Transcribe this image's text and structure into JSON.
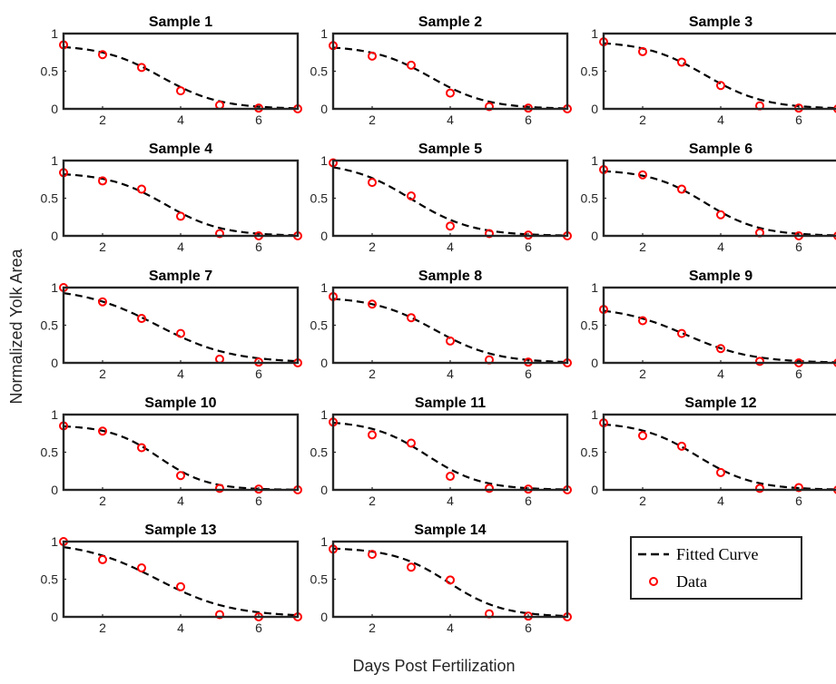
{
  "figure": {
    "xlabel": "Days Post Fertilization",
    "ylabel": "Normalized Yolk Area"
  },
  "legend": {
    "placement": "bottom-right",
    "entries": [
      {
        "label": "Fitted Curve",
        "style": "dashed-line",
        "color": "#000000"
      },
      {
        "label": "Data",
        "style": "circle-marker",
        "color": "#ff0000"
      }
    ]
  },
  "colors": {
    "data": "#ff0000",
    "fit": "#000000",
    "axes": "#262626"
  },
  "chart_data": [
    {
      "type": "line",
      "title": "Sample 1",
      "xlim": [
        1,
        7
      ],
      "ylim": [
        0,
        1
      ],
      "xticks": [
        2,
        4,
        6
      ],
      "yticks": [
        0,
        0.5,
        1
      ],
      "x": [
        1,
        2,
        3,
        4,
        5,
        6,
        7
      ],
      "data": [
        0.85,
        0.72,
        0.55,
        0.24,
        0.05,
        0.01,
        0.0
      ],
      "fit": {
        "a": 0.85,
        "t0": 3.5,
        "s": 0.75
      }
    },
    {
      "type": "line",
      "title": "Sample 2",
      "xlim": [
        1,
        7
      ],
      "ylim": [
        0,
        1
      ],
      "xticks": [
        2,
        4,
        6
      ],
      "yticks": [
        0,
        0.5,
        1
      ],
      "x": [
        1,
        2,
        3,
        4,
        5,
        6,
        7
      ],
      "data": [
        0.84,
        0.7,
        0.58,
        0.21,
        0.03,
        0.01,
        0.0
      ],
      "fit": {
        "a": 0.84,
        "t0": 3.5,
        "s": 0.73
      }
    },
    {
      "type": "line",
      "title": "Sample 3",
      "xlim": [
        1,
        7
      ],
      "ylim": [
        0,
        1
      ],
      "xticks": [
        2,
        4,
        6
      ],
      "yticks": [
        0,
        0.5,
        1
      ],
      "x": [
        1,
        2,
        3,
        4,
        5,
        6,
        7
      ],
      "data": [
        0.89,
        0.76,
        0.62,
        0.31,
        0.04,
        0.01,
        0.0
      ],
      "fit": {
        "a": 0.9,
        "t0": 3.6,
        "s": 0.76
      }
    },
    {
      "type": "line",
      "title": "Sample 4",
      "xlim": [
        1,
        7
      ],
      "ylim": [
        0,
        1
      ],
      "xticks": [
        2,
        4,
        6
      ],
      "yticks": [
        0,
        0.5,
        1
      ],
      "x": [
        1,
        2,
        3,
        4,
        5,
        6,
        7
      ],
      "data": [
        0.84,
        0.73,
        0.62,
        0.26,
        0.03,
        0.0,
        0.0
      ],
      "fit": {
        "a": 0.84,
        "t0": 3.6,
        "s": 0.72
      }
    },
    {
      "type": "line",
      "title": "Sample 5",
      "xlim": [
        1,
        7
      ],
      "ylim": [
        0,
        1
      ],
      "xticks": [
        2,
        4,
        6
      ],
      "yticks": [
        0,
        0.5,
        1
      ],
      "x": [
        1,
        2,
        3,
        4,
        5,
        6,
        7
      ],
      "data": [
        0.97,
        0.71,
        0.53,
        0.13,
        0.03,
        0.01,
        0.0
      ],
      "fit": {
        "a": 0.98,
        "t0": 3.0,
        "s": 0.78
      }
    },
    {
      "type": "line",
      "title": "Sample 6",
      "xlim": [
        1,
        7
      ],
      "ylim": [
        0,
        1
      ],
      "xticks": [
        2,
        4,
        6
      ],
      "yticks": [
        0,
        0.5,
        1
      ],
      "x": [
        1,
        2,
        3,
        4,
        5,
        6,
        7
      ],
      "data": [
        0.88,
        0.81,
        0.62,
        0.28,
        0.04,
        0.0,
        0.0
      ],
      "fit": {
        "a": 0.88,
        "t0": 3.6,
        "s": 0.7
      }
    },
    {
      "type": "line",
      "title": "Sample 7",
      "xlim": [
        1,
        7
      ],
      "ylim": [
        0,
        1
      ],
      "xticks": [
        2,
        4,
        6
      ],
      "yticks": [
        0,
        0.5,
        1
      ],
      "x": [
        1,
        2,
        3,
        4,
        5,
        6,
        7
      ],
      "data": [
        1.0,
        0.81,
        0.59,
        0.39,
        0.05,
        0.01,
        0.0
      ],
      "fit": {
        "a": 1.0,
        "t0": 3.4,
        "s": 0.95
      }
    },
    {
      "type": "line",
      "title": "Sample 8",
      "xlim": [
        1,
        7
      ],
      "ylim": [
        0,
        1
      ],
      "xticks": [
        2,
        4,
        6
      ],
      "yticks": [
        0,
        0.5,
        1
      ],
      "x": [
        1,
        2,
        3,
        4,
        5,
        6,
        7
      ],
      "data": [
        0.88,
        0.78,
        0.6,
        0.29,
        0.04,
        0.01,
        0.0
      ],
      "fit": {
        "a": 0.88,
        "t0": 3.6,
        "s": 0.78
      }
    },
    {
      "type": "line",
      "title": "Sample 9",
      "xlim": [
        1,
        7
      ],
      "ylim": [
        0,
        1
      ],
      "xticks": [
        2,
        4,
        6
      ],
      "yticks": [
        0,
        0.5,
        1
      ],
      "x": [
        1,
        2,
        3,
        4,
        5,
        6,
        7
      ],
      "data": [
        0.71,
        0.56,
        0.39,
        0.19,
        0.02,
        0.0,
        0.0
      ],
      "fit": {
        "a": 0.75,
        "t0": 3.1,
        "s": 0.85
      }
    },
    {
      "type": "line",
      "title": "Sample 10",
      "xlim": [
        1,
        7
      ],
      "ylim": [
        0,
        1
      ],
      "xticks": [
        2,
        4,
        6
      ],
      "yticks": [
        0,
        0.5,
        1
      ],
      "x": [
        1,
        2,
        3,
        4,
        5,
        6,
        7
      ],
      "data": [
        0.85,
        0.78,
        0.56,
        0.19,
        0.02,
        0.01,
        0.0
      ],
      "fit": {
        "a": 0.86,
        "t0": 3.45,
        "s": 0.62
      }
    },
    {
      "type": "line",
      "title": "Sample 11",
      "xlim": [
        1,
        7
      ],
      "ylim": [
        0,
        1
      ],
      "xticks": [
        2,
        4,
        6
      ],
      "yticks": [
        0,
        0.5,
        1
      ],
      "x": [
        1,
        2,
        3,
        4,
        5,
        6,
        7
      ],
      "data": [
        0.9,
        0.73,
        0.62,
        0.18,
        0.02,
        0.01,
        0.0
      ],
      "fit": {
        "a": 0.92,
        "t0": 3.4,
        "s": 0.7
      }
    },
    {
      "type": "line",
      "title": "Sample 12",
      "xlim": [
        1,
        7
      ],
      "ylim": [
        0,
        1
      ],
      "xticks": [
        2,
        4,
        6
      ],
      "yticks": [
        0,
        0.5,
        1
      ],
      "x": [
        1,
        2,
        3,
        4,
        5,
        6,
        7
      ],
      "data": [
        0.89,
        0.72,
        0.58,
        0.23,
        0.02,
        0.03,
        0.0
      ],
      "fit": {
        "a": 0.9,
        "t0": 3.4,
        "s": 0.72
      }
    },
    {
      "type": "line",
      "title": "Sample 13",
      "xlim": [
        1,
        7
      ],
      "ylim": [
        0,
        1
      ],
      "xticks": [
        2,
        4,
        6
      ],
      "yticks": [
        0,
        0.5,
        1
      ],
      "x": [
        1,
        2,
        3,
        4,
        5,
        6,
        7
      ],
      "data": [
        1.0,
        0.76,
        0.65,
        0.4,
        0.03,
        0.0,
        0.0
      ],
      "fit": {
        "a": 1.0,
        "t0": 3.4,
        "s": 0.95
      }
    },
    {
      "type": "line",
      "title": "Sample 14",
      "xlim": [
        1,
        7
      ],
      "ylim": [
        0,
        1
      ],
      "xticks": [
        2,
        4,
        6
      ],
      "yticks": [
        0,
        0.5,
        1
      ],
      "x": [
        1,
        2,
        3,
        4,
        5,
        6,
        7
      ],
      "data": [
        0.9,
        0.83,
        0.66,
        0.49,
        0.04,
        0.01,
        0.0
      ],
      "fit": {
        "a": 0.92,
        "t0": 3.95,
        "s": 0.7
      }
    }
  ]
}
